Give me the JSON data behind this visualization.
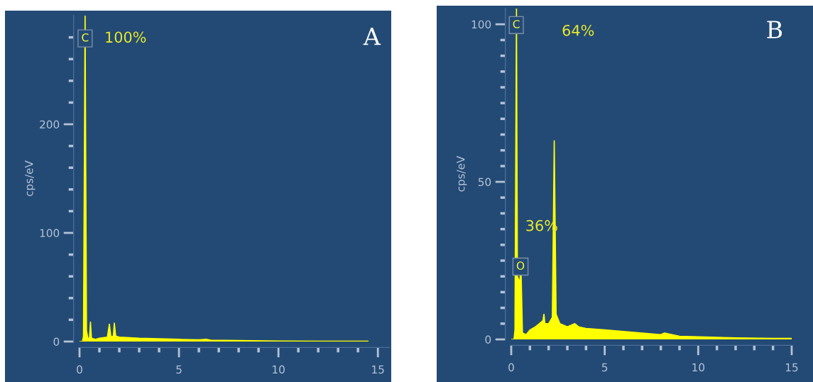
{
  "chart_data": [
    {
      "type": "area",
      "title": "A",
      "ylabel": "cps/eV",
      "color": "#ffff00",
      "x": [
        0,
        0.15,
        0.2,
        0.28,
        0.35,
        0.42,
        0.5,
        0.55,
        0.6,
        0.8,
        1.0,
        1.4,
        1.5,
        1.58,
        1.7,
        1.75,
        1.82,
        2.0,
        3,
        4,
        5,
        6,
        6.4,
        6.6,
        8,
        10,
        12,
        14,
        14.5
      ],
      "values": [
        0,
        0,
        5,
        300,
        10,
        3,
        3,
        18,
        3,
        2,
        3,
        4,
        16,
        4,
        5,
        17,
        5,
        4,
        3,
        2.5,
        2,
        1.5,
        2,
        1.2,
        1,
        0.5,
        0.3,
        0.2,
        0.2
      ],
      "xlim": [
        0,
        15.6
      ],
      "ylim": [
        0,
        300
      ],
      "xticks": [
        0,
        {
          "value": 1,
          "label": null
        },
        {
          "value": 2,
          "label": null
        },
        {
          "value": 3,
          "label": null
        },
        {
          "value": 4,
          "label": null
        },
        5,
        {
          "value": 6,
          "label": null
        },
        {
          "value": 7,
          "label": null
        },
        {
          "value": 8,
          "label": null
        },
        {
          "value": 9,
          "label": null
        },
        10,
        {
          "value": 11,
          "label": null
        },
        {
          "value": 12,
          "label": null
        },
        {
          "value": 13,
          "label": null
        },
        {
          "value": 14,
          "label": null
        },
        15
      ],
      "yticks": [
        0,
        {
          "value": 20,
          "label": null
        },
        {
          "value": 40,
          "label": null
        },
        {
          "value": 60,
          "label": null
        },
        {
          "value": 80,
          "label": null
        },
        100,
        {
          "value": 120,
          "label": null
        },
        {
          "value": 140,
          "label": null
        },
        {
          "value": 160,
          "label": null
        },
        {
          "value": 180,
          "label": null
        },
        200,
        {
          "value": 220,
          "label": null
        },
        {
          "value": 240,
          "label": null
        },
        {
          "value": 260,
          "label": null
        },
        {
          "value": 280,
          "label": null
        }
      ],
      "annotations": [
        "C",
        "100%"
      ]
    },
    {
      "type": "area",
      "title": "B",
      "ylabel": "cps/eV",
      "color": "#ffff00",
      "x": [
        0,
        0.15,
        0.2,
        0.28,
        0.33,
        0.45,
        0.52,
        0.6,
        0.8,
        1.0,
        1.3,
        1.5,
        1.7,
        1.75,
        1.8,
        2.0,
        2.2,
        2.3,
        2.4,
        2.6,
        3.0,
        3.4,
        3.6,
        4,
        5,
        6,
        7,
        8,
        8.2,
        9,
        10,
        12,
        14,
        15
      ],
      "values": [
        0,
        0,
        3,
        105,
        20,
        18,
        23,
        2,
        1.5,
        3,
        4,
        5,
        6,
        8,
        5,
        5,
        7,
        63,
        8,
        5,
        4,
        5,
        4,
        3.5,
        3,
        2.5,
        2,
        1.5,
        2,
        1,
        0.8,
        0.5,
        0.3,
        0.3
      ],
      "xlim": [
        0,
        15
      ],
      "ylim": [
        0,
        105
      ],
      "xticks": [
        0,
        {
          "value": 1,
          "label": null
        },
        {
          "value": 2,
          "label": null
        },
        {
          "value": 3,
          "label": null
        },
        {
          "value": 4,
          "label": null
        },
        5,
        {
          "value": 6,
          "label": null
        },
        {
          "value": 7,
          "label": null
        },
        {
          "value": 8,
          "label": null
        },
        {
          "value": 9,
          "label": null
        },
        10,
        {
          "value": 11,
          "label": null
        },
        {
          "value": 12,
          "label": null
        },
        {
          "value": 13,
          "label": null
        },
        {
          "value": 14,
          "label": null
        },
        15
      ],
      "yticks": [
        0,
        {
          "value": 5,
          "label": null
        },
        {
          "value": 10,
          "label": null
        },
        {
          "value": 15,
          "label": null
        },
        {
          "value": 20,
          "label": null
        },
        {
          "value": 25,
          "label": null
        },
        {
          "value": 30,
          "label": null
        },
        {
          "value": 35,
          "label": null
        },
        {
          "value": 40,
          "label": null
        },
        {
          "value": 45,
          "label": null
        },
        50,
        {
          "value": 55,
          "label": null
        },
        {
          "value": 60,
          "label": null
        },
        {
          "value": 65,
          "label": null
        },
        {
          "value": 70,
          "label": null
        },
        {
          "value": 75,
          "label": null
        },
        {
          "value": 80,
          "label": null
        },
        {
          "value": 85,
          "label": null
        },
        {
          "value": 90,
          "label": null
        },
        {
          "value": 95,
          "label": null
        },
        100
      ],
      "annotations": [
        "C",
        "64%",
        "O",
        "36%"
      ]
    }
  ]
}
